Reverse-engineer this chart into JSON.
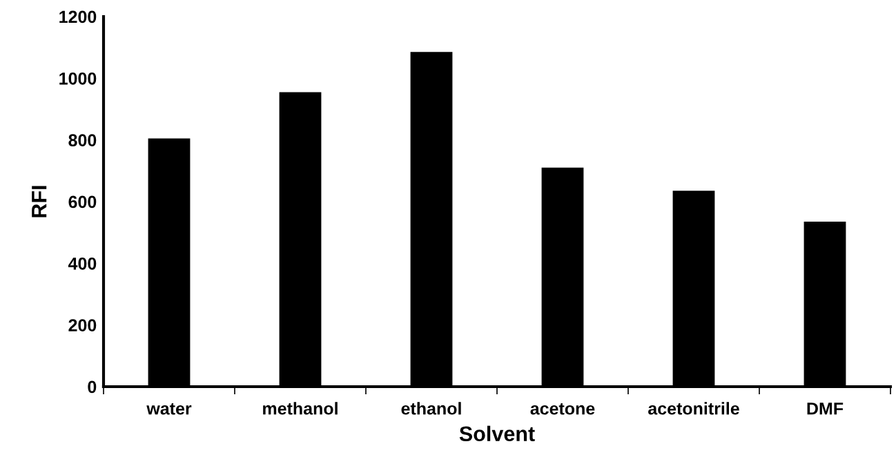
{
  "chart_data": {
    "type": "bar",
    "xlabel": "Solvent",
    "ylabel": "RFI",
    "categories": [
      "water",
      "methanol",
      "ethanol",
      "acetone",
      "acetonitrile",
      "DMF"
    ],
    "values": [
      805,
      955,
      1085,
      710,
      635,
      535
    ],
    "color": "#000000",
    "ylim": [
      0,
      1200
    ],
    "yticks": [
      0,
      200,
      400,
      600,
      800,
      1000,
      1200
    ],
    "grid": false
  }
}
